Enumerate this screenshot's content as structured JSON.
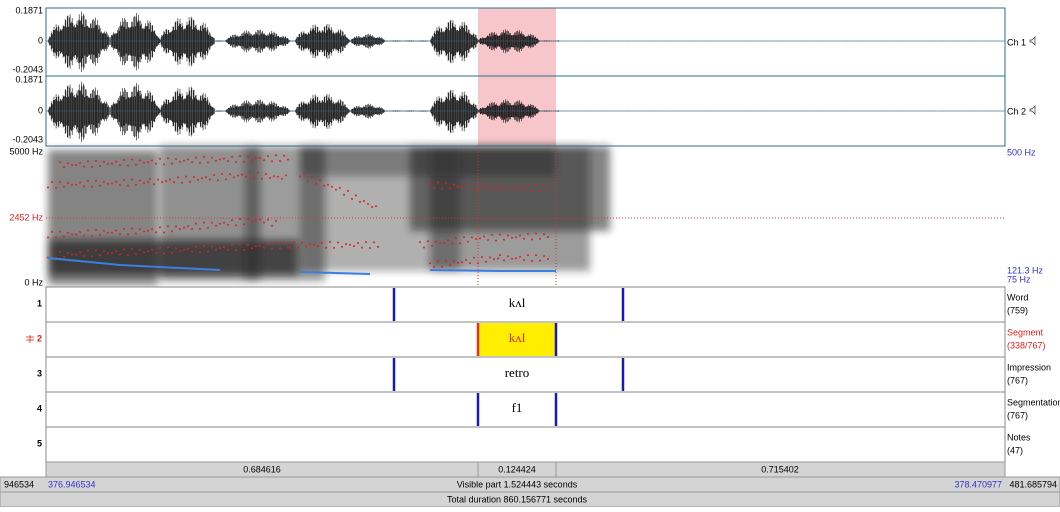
{
  "channels": [
    {
      "max": "0.1871",
      "zero": "0",
      "min": "-0.2043",
      "label": "Ch 1"
    },
    {
      "max": "0.1871",
      "zero": "0",
      "min": "-0.2043",
      "label": "Ch 2"
    }
  ],
  "spectrogram": {
    "top": "5000 Hz",
    "cursor": "2452 Hz",
    "bottom": "0 Hz",
    "pitch_top": "500 Hz",
    "pitch_value": "121.3 Hz",
    "pitch_bottom": "75 Hz"
  },
  "tiers": [
    {
      "number": "1",
      "name": "Word",
      "count": "(759)",
      "text": "kʌl"
    },
    {
      "number": "2",
      "name": "Segment",
      "count": "(338/767)",
      "text": "kʌl"
    },
    {
      "number": "3",
      "name": "Impression",
      "count": "(767)",
      "text": "retro"
    },
    {
      "number": "4",
      "name": "Segmentation",
      "count": "(767)",
      "text": "f1"
    },
    {
      "number": "5",
      "name": "Notes",
      "count": "(47)"
    }
  ],
  "durations": [
    "0.684616",
    "0.124424",
    "0.715402"
  ],
  "status": {
    "left_start": "946534",
    "visible_start": "376.946534",
    "visible": "Visible part 1.524443 seconds",
    "visible_end": "378.470977",
    "right_end": "481.685794",
    "total": "Total duration 860.156771 seconds"
  }
}
